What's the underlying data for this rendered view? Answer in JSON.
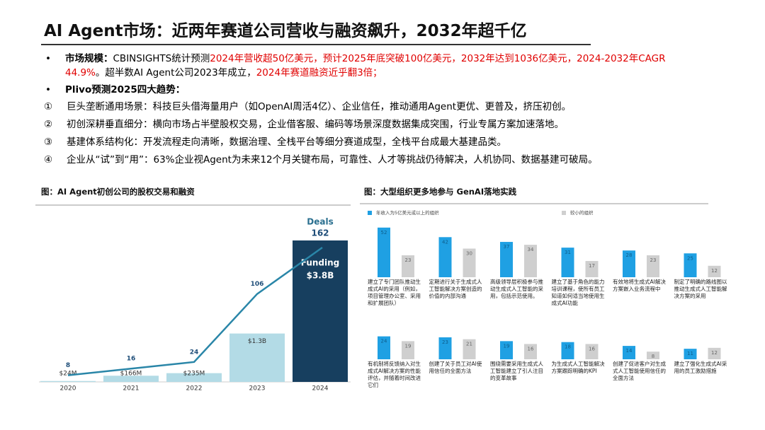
{
  "header": {
    "title": "AI Agent市场：近两年赛道公司营收与融资飙升，2032年超千亿"
  },
  "bullets": [
    {
      "label": "市场规模：",
      "segments": [
        {
          "text": "CBINSIGHTS统计预测",
          "color": "#000000"
        },
        {
          "text": "2024年营收超50亿美元，预计2025年底突破100亿美元，2032年达到1036亿美元，2024-2032年CAGR 44.9%",
          "color": "#e00000"
        },
        {
          "text": "。超半数AI Agent公司2023年成立，",
          "color": "#000000"
        },
        {
          "text": "2024年赛道融资近乎翻3倍；",
          "color": "#e00000"
        }
      ]
    },
    {
      "label": "Plivo预测2025四大趋势："
    }
  ],
  "trends": [
    {
      "marker": "①",
      "text": "巨头垄断通用场景：科技巨头借海量用户（如OpenAI周活4亿）、企业信任，推动通用Agent更优、更普及，挤压初创。"
    },
    {
      "marker": "②",
      "text": "初创深耕垂直细分：横向市场占半壁股权交易，企业借客服、编码等场景深度数据集成突围，行业专属方案加速落地。"
    },
    {
      "marker": "③",
      "text": "基建体系结构化：开发流程走向清晰，数据治理、全栈平台等细分赛道成型，全栈平台成最大基建品类。"
    },
    {
      "marker": "④",
      "text": "企业从“试”到“用”：63%企业视Agent为未来12个月关键布局，可靠性、人才等挑战仍待解决，人机协同、数据基建可破局。"
    }
  ],
  "chart_data": [
    {
      "type": "combo",
      "title": "图：AI Agent初创公司的股权交易和融资",
      "categories": [
        "2020",
        "2021",
        "2022",
        "2023",
        "2024"
      ],
      "series": [
        {
          "name": "Funding",
          "type": "bar",
          "values": [
            24,
            166,
            235,
            1300,
            3800
          ],
          "value_labels": [
            "$24M",
            "$166M",
            "$235M",
            "$1.3B",
            "$3.8B"
          ],
          "colors": [
            "#b3dbe6",
            "#b3dbe6",
            "#b3dbe6",
            "#b3dbe6",
            "#173f5f"
          ]
        },
        {
          "name": "Deals",
          "type": "line",
          "values": [
            8,
            16,
            24,
            106,
            162
          ],
          "color": "#2a86a8"
        }
      ]
    },
    {
      "type": "grouped-bar",
      "title": "图：大型组织更多地参与 GenAI落地实践",
      "categories": [
        "建立了专门团队推动生成式AI的采用（例如，项目管理办公室、采用和扩展团队）",
        "定期进行关于生成式人工智能解决方案创造的价值的内部沟通",
        "高级领导层积极参与推动生成式人工智能的采用，包括示范使用。",
        "建立了基于角色的能力培训课程，使所有员工知道如何适当地使用生成式AI功能",
        "有效地将生成式AI解决方案嵌入业务流程中",
        "制定了明确的路线图以推动生成式人工智能解决方案的采用",
        "有机制将反馈纳入对生成式AI解决方案的性能评估，并随着时间改进它们",
        "创建了关于员工对AI使用信任的全面方法",
        "围绕需要采用生成式人工智能建立了引人注目的变革故事",
        "为生成式人工智能解决方案跟踪明确的KPI",
        "创建了促进客户对生成式人工智能使用信任的全面方法",
        "建立了强化生成式AI采用的员工激励措施"
      ],
      "series": [
        {
          "name": "年收入为5亿美元或以上的组织",
          "color": "#1fa0e3",
          "values": [
            52,
            42,
            37,
            31,
            28,
            25,
            24,
            23,
            19,
            18,
            14,
            11
          ]
        },
        {
          "name": "较小的组织",
          "color": "#cfcfcf",
          "values": [
            23,
            30,
            34,
            17,
            23,
            12,
            19,
            21,
            16,
            16,
            8,
            12
          ]
        }
      ]
    }
  ]
}
